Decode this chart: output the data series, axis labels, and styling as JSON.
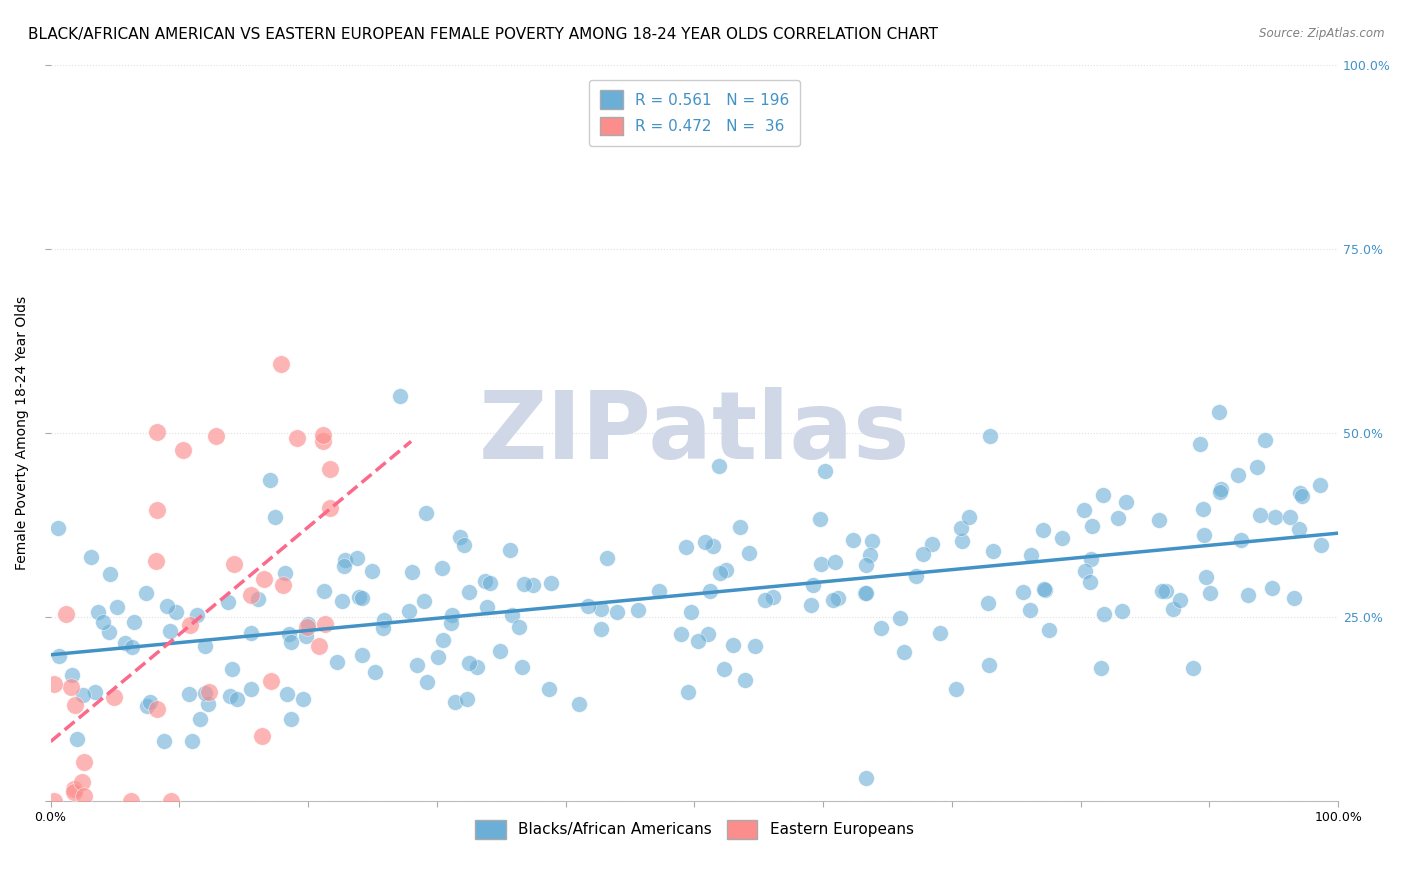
{
  "title": "BLACK/AFRICAN AMERICAN VS EASTERN EUROPEAN FEMALE POVERTY AMONG 18-24 YEAR OLDS CORRELATION CHART",
  "source": "Source: ZipAtlas.com",
  "ylabel": "Female Poverty Among 18-24 Year Olds",
  "xlabel": "",
  "xlim": [
    0.0,
    1.0
  ],
  "ylim": [
    0.0,
    1.0
  ],
  "xticks": [
    0.0,
    0.1,
    0.2,
    0.3,
    0.4,
    0.5,
    0.6,
    0.7,
    0.8,
    0.9,
    1.0
  ],
  "ytick_positions": [
    0.0,
    0.25,
    0.5,
    0.75,
    1.0
  ],
  "ytick_labels": [
    "",
    "25.0%",
    "50.0%",
    "75.0%",
    "100.0%"
  ],
  "xtick_labels": [
    "0.0%",
    "",
    "",
    "",
    "",
    "",
    "",
    "",
    "",
    "",
    "100.0%"
  ],
  "blue_R": 0.561,
  "blue_N": 196,
  "pink_R": 0.472,
  "pink_N": 36,
  "blue_color": "#6baed6",
  "pink_color": "#fc8d8d",
  "blue_line_color": "#4292c6",
  "pink_line_color": "#fb6a8a",
  "watermark": "ZIPatlas",
  "watermark_color": "#d0d8e8",
  "legend_label_blue": "Blacks/African Americans",
  "legend_label_pink": "Eastern Europeans",
  "title_fontsize": 11,
  "axis_label_fontsize": 10,
  "tick_fontsize": 9,
  "background_color": "#ffffff",
  "grid_color": "#e0e0e0",
  "seed": 42
}
